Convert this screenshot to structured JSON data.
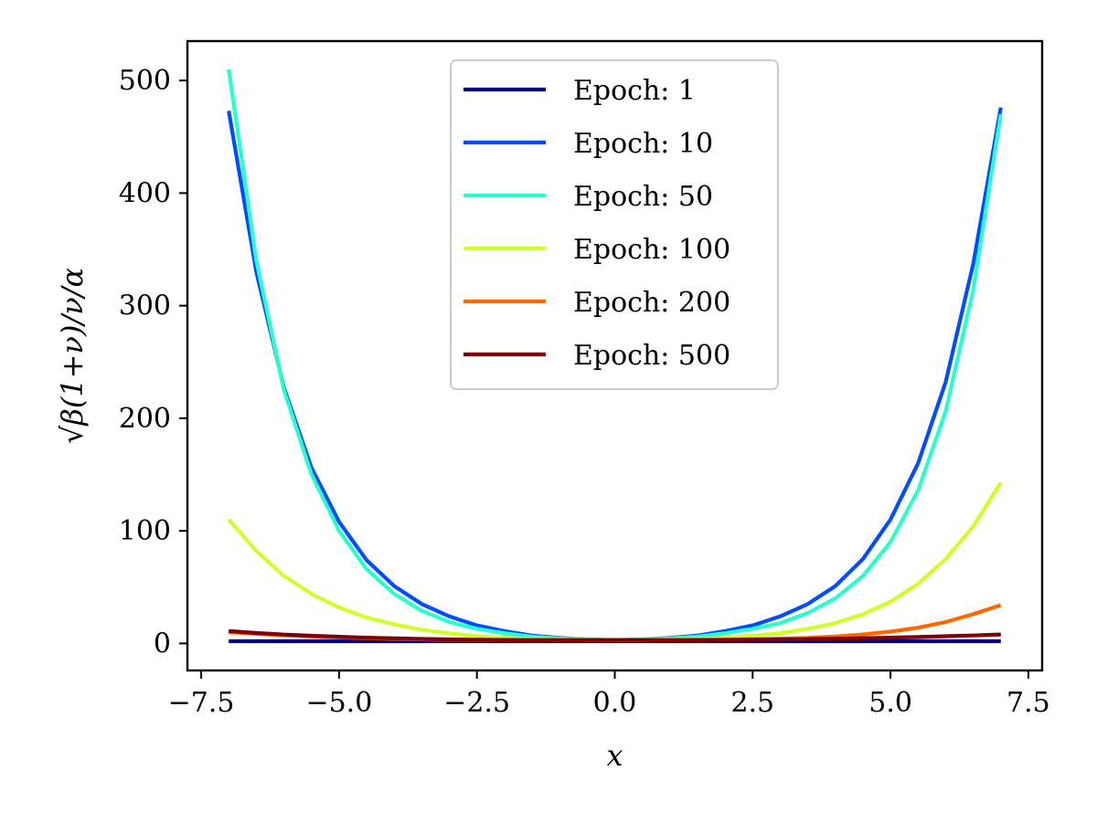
{
  "chart_data": {
    "type": "line",
    "xlabel": "x",
    "ylabel": "√β(1+ν)/ν/α",
    "xlim": [
      -7.75,
      7.75
    ],
    "ylim": [
      -24,
      535
    ],
    "x_ticks": [
      {
        "value": -7.5,
        "label": "−7.5"
      },
      {
        "value": -5.0,
        "label": "−5.0"
      },
      {
        "value": -2.5,
        "label": "−2.5"
      },
      {
        "value": 0.0,
        "label": "0.0"
      },
      {
        "value": 2.5,
        "label": "2.5"
      },
      {
        "value": 5.0,
        "label": "5.0"
      },
      {
        "value": 7.5,
        "label": "7.5"
      }
    ],
    "y_ticks": [
      {
        "value": 0,
        "label": "0"
      },
      {
        "value": 100,
        "label": "100"
      },
      {
        "value": 200,
        "label": "200"
      },
      {
        "value": 300,
        "label": "300"
      },
      {
        "value": 400,
        "label": "400"
      },
      {
        "value": 500,
        "label": "500"
      }
    ],
    "x": [
      -7,
      -6.5,
      -6,
      -5.5,
      -5,
      -4.5,
      -4,
      -3.5,
      -3,
      -2.5,
      -2,
      -1.5,
      -1,
      -0.5,
      0,
      0.5,
      1,
      1.5,
      2,
      2.5,
      3,
      3.5,
      4,
      4.5,
      5,
      5.5,
      6,
      6.5,
      7
    ],
    "grid": false,
    "legend_position": "top-center",
    "series": [
      {
        "name": "Epoch: 1",
        "color": "#00007f",
        "values": [
          2,
          2,
          2,
          2,
          2,
          2,
          2,
          2,
          2,
          2,
          2,
          2,
          2,
          2,
          2,
          2,
          2,
          2,
          2,
          2,
          2,
          2,
          2,
          2,
          2,
          2,
          2,
          2,
          2
        ]
      },
      {
        "name": "Epoch: 10",
        "color": "#004cff",
        "values": [
          473,
          330,
          227,
          156,
          108,
          74,
          51,
          35,
          24,
          16,
          11,
          7,
          5,
          3.5,
          3,
          3.5,
          5,
          7,
          11,
          16,
          24,
          35,
          51,
          75,
          110,
          160,
          232,
          337,
          476
        ]
      },
      {
        "name": "Epoch: 50",
        "color": "#29ffce",
        "values": [
          510,
          340,
          225,
          150,
          100,
          66,
          44,
          29,
          19,
          13,
          9,
          6,
          4.5,
          3.5,
          3,
          3.5,
          4.5,
          6,
          9,
          13,
          18,
          27,
          40,
          60,
          90,
          136,
          206,
          314,
          470
        ]
      },
      {
        "name": "Epoch: 100",
        "color": "#ceff29",
        "values": [
          110,
          82,
          60,
          44,
          32,
          23,
          17,
          12,
          9,
          6.5,
          5,
          4,
          3.5,
          3,
          3,
          3,
          3.5,
          4,
          5,
          7,
          9,
          13,
          18,
          26,
          37,
          53,
          75,
          104,
          143
        ]
      },
      {
        "name": "Epoch: 200",
        "color": "#ff6800",
        "values": [
          10,
          8.5,
          7.2,
          6.2,
          5.3,
          4.6,
          4,
          3.6,
          3.3,
          3.1,
          3,
          3,
          3,
          3,
          3,
          3,
          3,
          3.2,
          3.4,
          3.8,
          4.3,
          5,
          6.2,
          8,
          10.5,
          14,
          19,
          26,
          34
        ]
      },
      {
        "name": "Epoch: 500",
        "color": "#7f0000",
        "values": [
          11,
          9.3,
          7.9,
          6.8,
          5.9,
          5.1,
          4.5,
          4,
          3.6,
          3.3,
          3.1,
          3,
          3,
          3,
          3,
          3,
          3,
          3,
          3.1,
          3.3,
          3.5,
          3.8,
          4.2,
          4.6,
          5.1,
          5.7,
          6.4,
          7.1,
          8
        ]
      }
    ]
  }
}
